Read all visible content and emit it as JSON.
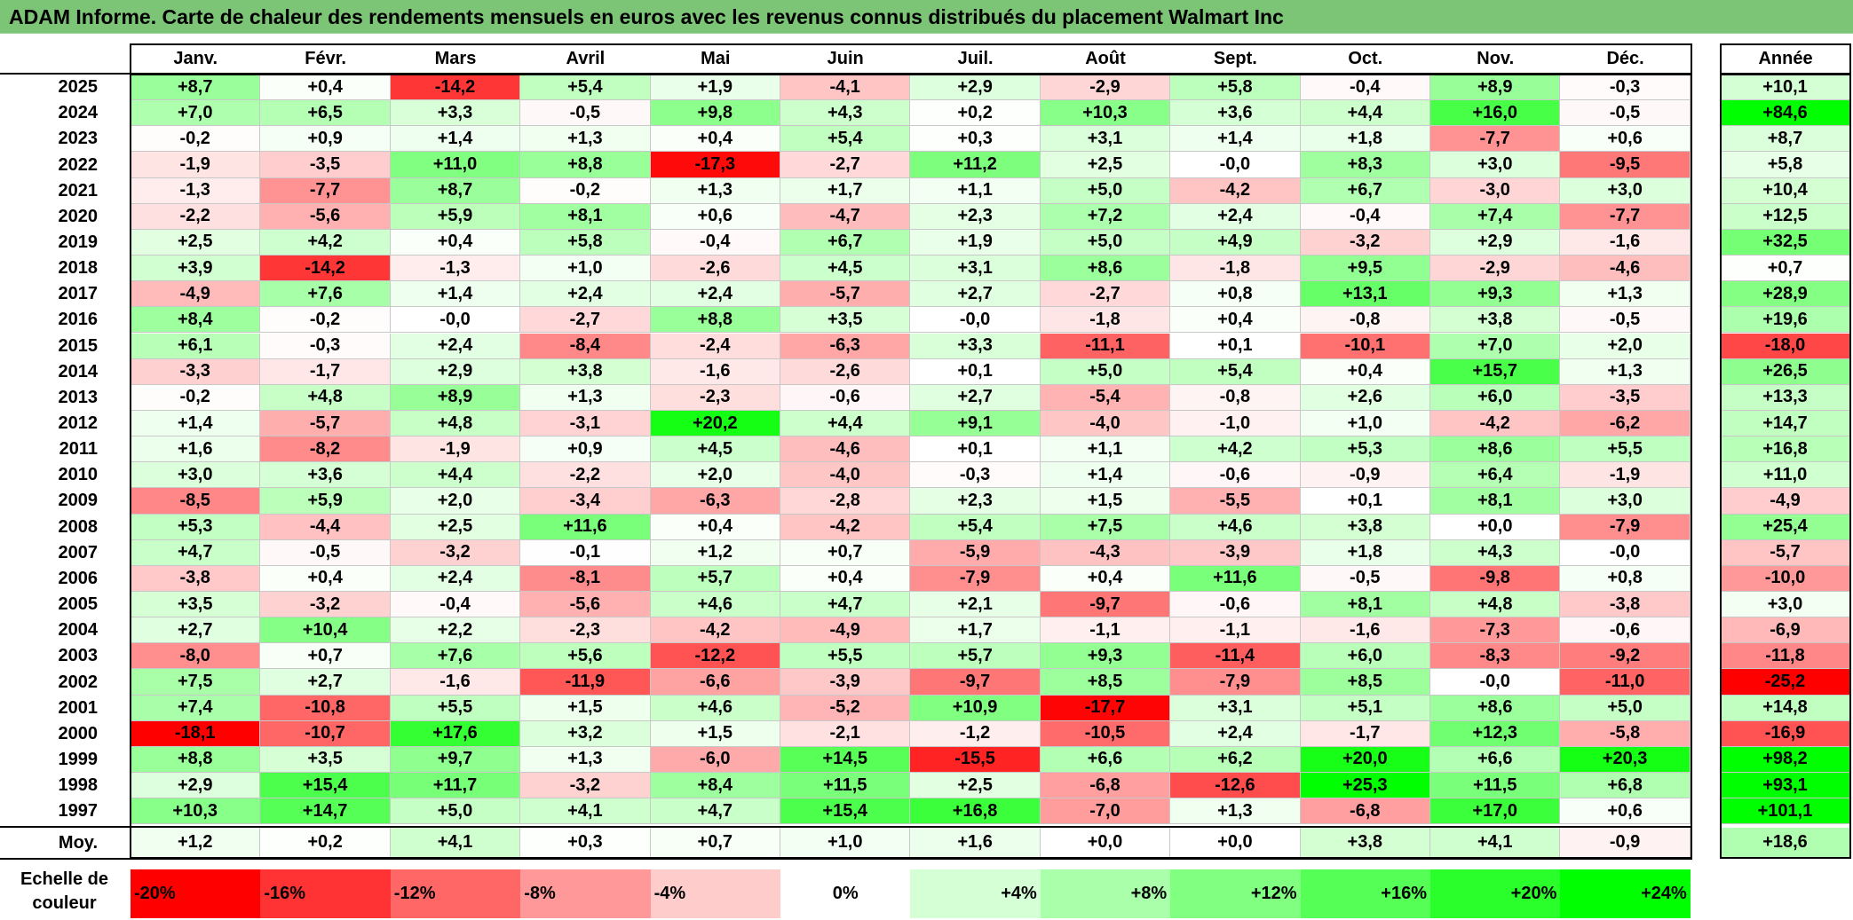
{
  "title": "ADAM Informe. Carte de chaleur des rendements mensuels en euros avec les revenus connus distribués du placement Walmart Inc",
  "chart_data": {
    "type": "heatmap",
    "title": "ADAM Informe. Carte de chaleur des rendements mensuels en euros avec les revenus connus distribués du placement Walmart Inc",
    "columns": [
      "Janv.",
      "Févr.",
      "Mars",
      "Avril",
      "Mai",
      "Juin",
      "Juil.",
      "Août",
      "Sept.",
      "Oct.",
      "Nov.",
      "Déc."
    ],
    "year_column_label": "Année",
    "rows": [
      {
        "year": "2025",
        "values": [
          "+8,7",
          "+0,4",
          "-14,2",
          "+5,4",
          "+1,9",
          "-4,1",
          "+2,9",
          "-2,9",
          "+5,8",
          "-0,4",
          "+8,9",
          "-0,3"
        ],
        "annual": "+10,1"
      },
      {
        "year": "2024",
        "values": [
          "+7,0",
          "+6,5",
          "+3,3",
          "-0,5",
          "+9,8",
          "+4,3",
          "+0,2",
          "+10,3",
          "+3,6",
          "+4,4",
          "+16,0",
          "-0,5"
        ],
        "annual": "+84,6"
      },
      {
        "year": "2023",
        "values": [
          "-0,2",
          "+0,9",
          "+1,4",
          "+1,3",
          "+0,4",
          "+5,4",
          "+0,3",
          "+3,1",
          "+1,4",
          "+1,8",
          "-7,7",
          "+0,6"
        ],
        "annual": "+8,7"
      },
      {
        "year": "2022",
        "values": [
          "-1,9",
          "-3,5",
          "+11,0",
          "+8,8",
          "-17,3",
          "-2,7",
          "+11,2",
          "+2,5",
          "-0,0",
          "+8,3",
          "+3,0",
          "-9,5"
        ],
        "annual": "+5,8"
      },
      {
        "year": "2021",
        "values": [
          "-1,3",
          "-7,7",
          "+8,7",
          "-0,2",
          "+1,3",
          "+1,7",
          "+1,1",
          "+5,0",
          "-4,2",
          "+6,7",
          "-3,0",
          "+3,0"
        ],
        "annual": "+10,4"
      },
      {
        "year": "2020",
        "values": [
          "-2,2",
          "-5,6",
          "+5,9",
          "+8,1",
          "+0,6",
          "-4,7",
          "+2,3",
          "+7,2",
          "+2,4",
          "-0,4",
          "+7,4",
          "-7,7"
        ],
        "annual": "+12,5"
      },
      {
        "year": "2019",
        "values": [
          "+2,5",
          "+4,2",
          "+0,4",
          "+5,8",
          "-0,4",
          "+6,7",
          "+1,9",
          "+5,0",
          "+4,9",
          "-3,2",
          "+2,9",
          "-1,6"
        ],
        "annual": "+32,5"
      },
      {
        "year": "2018",
        "values": [
          "+3,9",
          "-14,2",
          "-1,3",
          "+1,0",
          "-2,6",
          "+4,5",
          "+3,1",
          "+8,6",
          "-1,8",
          "+9,5",
          "-2,9",
          "-4,6"
        ],
        "annual": "+0,7"
      },
      {
        "year": "2017",
        "values": [
          "-4,9",
          "+7,6",
          "+1,4",
          "+2,4",
          "+2,4",
          "-5,7",
          "+2,7",
          "-2,7",
          "+0,8",
          "+13,1",
          "+9,3",
          "+1,3"
        ],
        "annual": "+28,9"
      },
      {
        "year": "2016",
        "values": [
          "+8,4",
          "-0,2",
          "-0,0",
          "-2,7",
          "+8,8",
          "+3,5",
          "-0,0",
          "-1,8",
          "+0,4",
          "-0,8",
          "+3,8",
          "-0,5"
        ],
        "annual": "+19,6"
      },
      {
        "year": "2015",
        "values": [
          "+6,1",
          "-0,3",
          "+2,4",
          "-8,4",
          "-2,4",
          "-6,3",
          "+3,3",
          "-11,1",
          "+0,1",
          "-10,1",
          "+7,0",
          "+2,0"
        ],
        "annual": "-18,0"
      },
      {
        "year": "2014",
        "values": [
          "-3,3",
          "-1,7",
          "+2,9",
          "+3,8",
          "-1,6",
          "-2,6",
          "+0,1",
          "+5,0",
          "+5,4",
          "+0,4",
          "+15,7",
          "+1,3"
        ],
        "annual": "+26,5"
      },
      {
        "year": "2013",
        "values": [
          "-0,2",
          "+4,8",
          "+8,9",
          "+1,3",
          "-2,3",
          "-0,6",
          "+2,7",
          "-5,4",
          "-0,8",
          "+2,6",
          "+6,0",
          "-3,5"
        ],
        "annual": "+13,3"
      },
      {
        "year": "2012",
        "values": [
          "+1,4",
          "-5,7",
          "+4,8",
          "-3,1",
          "+20,2",
          "+4,4",
          "+9,1",
          "-4,0",
          "-1,0",
          "+1,0",
          "-4,2",
          "-6,2"
        ],
        "annual": "+14,7"
      },
      {
        "year": "2011",
        "values": [
          "+1,6",
          "-8,2",
          "-1,9",
          "+0,9",
          "+4,5",
          "-4,6",
          "+0,1",
          "+1,1",
          "+4,2",
          "+5,3",
          "+8,6",
          "+5,5"
        ],
        "annual": "+16,8"
      },
      {
        "year": "2010",
        "values": [
          "+3,0",
          "+3,6",
          "+4,4",
          "-2,2",
          "+2,0",
          "-4,0",
          "-0,3",
          "+1,4",
          "-0,6",
          "-0,9",
          "+6,4",
          "-1,9"
        ],
        "annual": "+11,0"
      },
      {
        "year": "2009",
        "values": [
          "-8,5",
          "+5,9",
          "+2,0",
          "-3,4",
          "-6,3",
          "-2,8",
          "+2,3",
          "+1,5",
          "-5,5",
          "+0,1",
          "+8,1",
          "+3,0"
        ],
        "annual": "-4,9"
      },
      {
        "year": "2008",
        "values": [
          "+5,3",
          "-4,4",
          "+2,5",
          "+11,6",
          "+0,4",
          "-4,2",
          "+5,4",
          "+7,5",
          "+4,6",
          "+3,8",
          "+0,0",
          "-7,9"
        ],
        "annual": "+25,4"
      },
      {
        "year": "2007",
        "values": [
          "+4,7",
          "-0,5",
          "-3,2",
          "-0,1",
          "+1,2",
          "+0,7",
          "-5,9",
          "-4,3",
          "-3,9",
          "+1,8",
          "+4,3",
          "-0,0"
        ],
        "annual": "-5,7"
      },
      {
        "year": "2006",
        "values": [
          "-3,8",
          "+0,4",
          "+2,4",
          "-8,1",
          "+5,7",
          "+0,4",
          "-7,9",
          "+0,4",
          "+11,6",
          "-0,5",
          "-9,8",
          "+0,8"
        ],
        "annual": "-10,0"
      },
      {
        "year": "2005",
        "values": [
          "+3,5",
          "-3,2",
          "-0,4",
          "-5,6",
          "+4,6",
          "+4,7",
          "+2,1",
          "-9,7",
          "-0,6",
          "+8,1",
          "+4,8",
          "-3,8"
        ],
        "annual": "+3,0"
      },
      {
        "year": "2004",
        "values": [
          "+2,7",
          "+10,4",
          "+2,2",
          "-2,3",
          "-4,2",
          "-4,9",
          "+1,7",
          "-1,1",
          "-1,1",
          "-1,6",
          "-7,3",
          "-0,6"
        ],
        "annual": "-6,9"
      },
      {
        "year": "2003",
        "values": [
          "-8,0",
          "+0,7",
          "+7,6",
          "+5,6",
          "-12,2",
          "+5,5",
          "+5,7",
          "+9,3",
          "-11,4",
          "+6,0",
          "-8,3",
          "-9,2"
        ],
        "annual": "-11,8"
      },
      {
        "year": "2002",
        "values": [
          "+7,5",
          "+2,7",
          "-1,6",
          "-11,9",
          "-6,6",
          "-3,9",
          "-9,7",
          "+8,5",
          "-7,9",
          "+8,5",
          "-0,0",
          "-11,0"
        ],
        "annual": "-25,2"
      },
      {
        "year": "2001",
        "values": [
          "+7,4",
          "-10,8",
          "+5,5",
          "+1,5",
          "+4,6",
          "-5,2",
          "+10,9",
          "-17,7",
          "+3,1",
          "+5,1",
          "+8,6",
          "+5,0"
        ],
        "annual": "+14,8"
      },
      {
        "year": "2000",
        "values": [
          "-18,1",
          "-10,7",
          "+17,6",
          "+3,2",
          "+1,5",
          "-2,1",
          "-1,2",
          "-10,5",
          "+2,4",
          "-1,7",
          "+12,3",
          "-5,8"
        ],
        "annual": "-16,9"
      },
      {
        "year": "1999",
        "values": [
          "+8,8",
          "+3,5",
          "+9,7",
          "+1,3",
          "-6,0",
          "+14,5",
          "-15,5",
          "+6,6",
          "+6,2",
          "+20,0",
          "+6,6",
          "+20,3"
        ],
        "annual": "+98,2"
      },
      {
        "year": "1998",
        "values": [
          "+2,9",
          "+15,4",
          "+11,7",
          "-3,2",
          "+8,4",
          "+11,5",
          "+2,5",
          "-6,8",
          "-12,6",
          "+25,3",
          "+11,5",
          "+6,8"
        ],
        "annual": "+93,1"
      },
      {
        "year": "1997",
        "values": [
          "+10,3",
          "+14,7",
          "+5,0",
          "+4,1",
          "+4,7",
          "+15,4",
          "+16,8",
          "-7,0",
          "+1,3",
          "-6,8",
          "+17,0",
          "+0,6"
        ],
        "annual": "+101,1"
      }
    ],
    "average": {
      "label": "Moy.",
      "values": [
        "+1,2",
        "+0,2",
        "+4,1",
        "+0,3",
        "+0,7",
        "+1,0",
        "+1,6",
        "+0,0",
        "+0,0",
        "+3,8",
        "+4,1",
        "-0,9"
      ],
      "annual": "+18,6"
    },
    "scale": {
      "label_line1": "Echelle de",
      "label_line2": "couleur",
      "steps": [
        "-20%",
        "-16%",
        "-12%",
        "-8%",
        "-4%",
        "0%",
        "+4%",
        "+8%",
        "+12%",
        "+16%",
        "+20%",
        "+24%"
      ]
    },
    "colors": {
      "negative": "#ff0000",
      "neutral": "#ffffff",
      "positive": "#00ff00",
      "title_bar": "#7cc576"
    }
  }
}
